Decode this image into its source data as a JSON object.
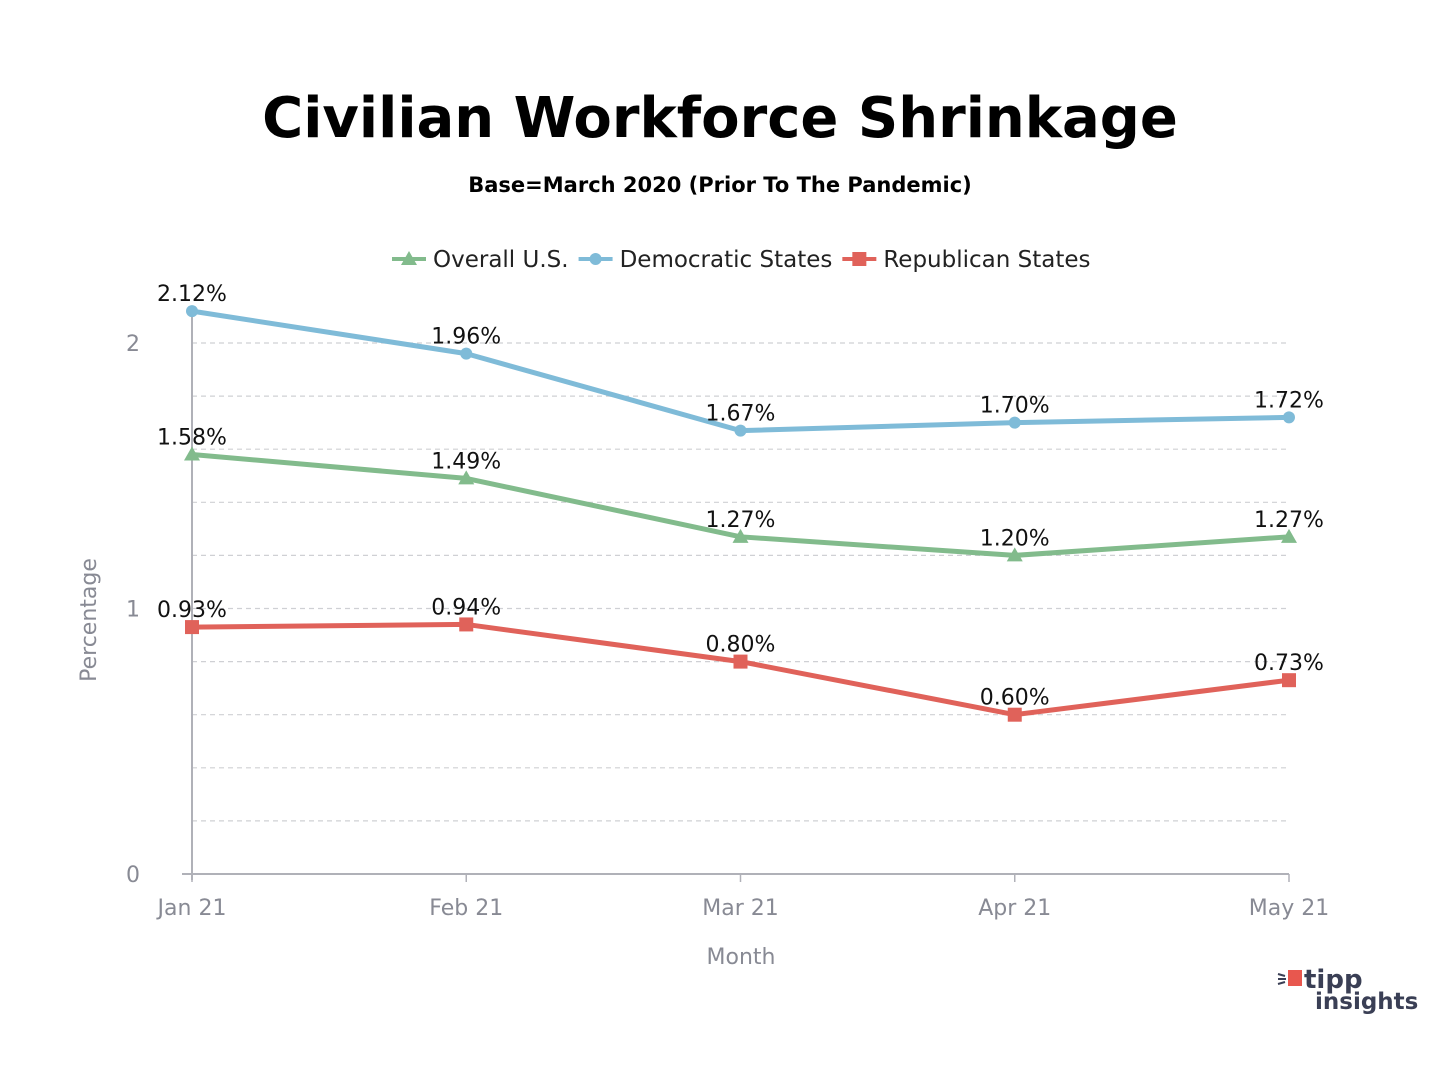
{
  "chart_data": {
    "type": "line",
    "title": "Civilian Workforce Shrinkage",
    "subtitle": "Base=March 2020 (Prior To The Pandemic)",
    "xlabel": "Month",
    "ylabel": "Percentage",
    "categories": [
      "Jan 21",
      "Feb 21",
      "Mar 21",
      "Apr 21",
      "May 21"
    ],
    "ylim": [
      0,
      2.2
    ],
    "yticks": [
      0,
      1,
      2
    ],
    "grid": true,
    "legend_position": "top",
    "series": [
      {
        "name": "Overall U.S.",
        "values": [
          1.58,
          1.49,
          1.27,
          1.2,
          1.27
        ],
        "labels": [
          "1.58%",
          "1.49%",
          "1.27%",
          "1.20%",
          "1.27%"
        ],
        "color": "#82bb8c",
        "marker": "triangle"
      },
      {
        "name": "Democratic States",
        "values": [
          2.12,
          1.96,
          1.67,
          1.7,
          1.72
        ],
        "labels": [
          "2.12%",
          "1.96%",
          "1.67%",
          "1.70%",
          "1.72%"
        ],
        "color": "#7fbbd8",
        "marker": "circle"
      },
      {
        "name": "Republican States",
        "values": [
          0.93,
          0.94,
          0.8,
          0.6,
          0.73
        ],
        "labels": [
          "0.93%",
          "0.94%",
          "0.80%",
          "0.60%",
          "0.73%"
        ],
        "color": "#e0625a",
        "marker": "square"
      }
    ]
  },
  "logo": {
    "line1": "tipp",
    "line2": "insights",
    "color": "#e8574e"
  }
}
